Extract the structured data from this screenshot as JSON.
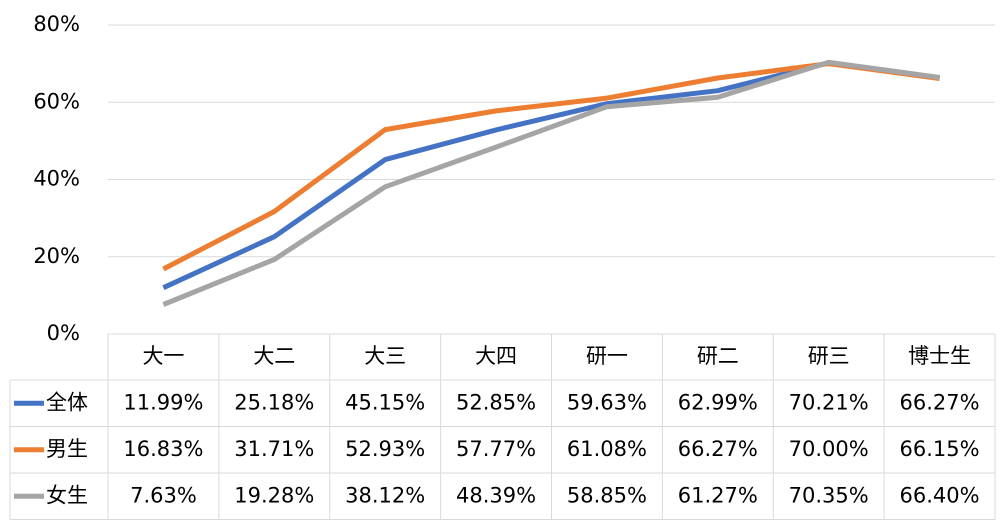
{
  "chart_data": {
    "type": "line",
    "categories": [
      "大一",
      "大二",
      "大三",
      "大四",
      "研一",
      "研二",
      "研三",
      "博士生"
    ],
    "series": [
      {
        "name": "全体",
        "color": "#4472c4",
        "values": [
          11.99,
          25.18,
          45.15,
          52.85,
          59.63,
          62.99,
          70.21,
          66.27
        ],
        "value_labels": [
          "11.99%",
          "25.18%",
          "45.15%",
          "52.85%",
          "59.63%",
          "62.99%",
          "70.21%",
          "66.27%"
        ]
      },
      {
        "name": "男生",
        "color": "#ed7d31",
        "values": [
          16.83,
          31.71,
          52.93,
          57.77,
          61.08,
          66.27,
          70.0,
          66.15
        ],
        "value_labels": [
          "16.83%",
          "31.71%",
          "52.93%",
          "57.77%",
          "61.08%",
          "66.27%",
          "70.00%",
          "66.15%"
        ]
      },
      {
        "name": "女生",
        "color": "#a5a5a5",
        "values": [
          7.63,
          19.28,
          38.12,
          48.39,
          58.85,
          61.27,
          70.35,
          66.4
        ],
        "value_labels": [
          "7.63%",
          "19.28%",
          "38.12%",
          "48.39%",
          "58.85%",
          "61.27%",
          "70.35%",
          "66.40%"
        ]
      }
    ],
    "ylim": [
      0,
      80
    ],
    "yticks": [
      {
        "value": 0,
        "label": "0%"
      },
      {
        "value": 20,
        "label": "20%"
      },
      {
        "value": 40,
        "label": "40%"
      },
      {
        "value": 60,
        "label": "60%"
      },
      {
        "value": 80,
        "label": "80%"
      }
    ],
    "grid": true
  }
}
